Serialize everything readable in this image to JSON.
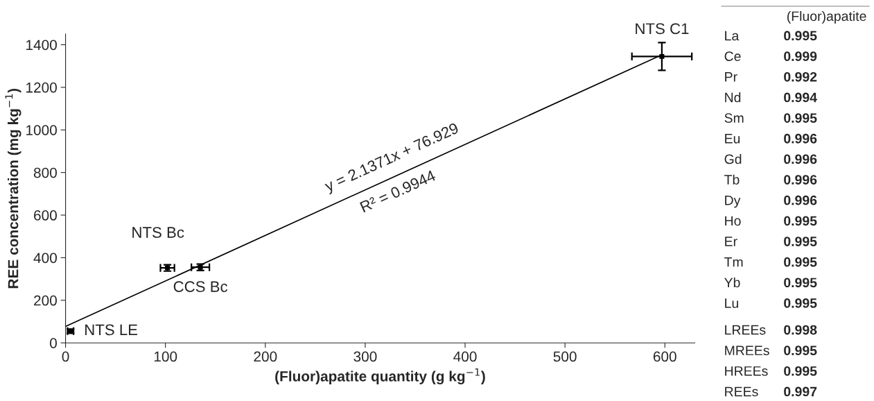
{
  "chart_data": [
    {
      "type": "scatter",
      "xlabel": "(Fluor)apatite quantity (g kg$^{−1}$)",
      "ylabel": "REE concentration (mg kg$^{−1}$)",
      "xlim": [
        0,
        630
      ],
      "xticks": [
        0,
        100,
        200,
        300,
        400,
        500,
        600
      ],
      "ylim": [
        0,
        1450
      ],
      "yticks": [
        0,
        200,
        400,
        600,
        800,
        1000,
        1200,
        1400
      ],
      "grid": false,
      "legend": false,
      "series": [
        {
          "type": "scatter",
          "color": "#000000",
          "marker": "square",
          "x": [
            5,
            102,
            135,
            597
          ],
          "values": [
            55,
            352,
            355,
            1345
          ],
          "errors": [
            10,
            15,
            15,
            65
          ],
          "xerrors": [
            3,
            7,
            9,
            30
          ]
        },
        {
          "type": "line",
          "color": "#000000",
          "line_style": "solid",
          "x": [
            0,
            597
          ],
          "values": [
            77,
            1353
          ]
        }
      ],
      "annotations": [
        {
          "text": "NTS LE",
          "x": 5,
          "y": 55
        },
        {
          "text": "NTS Bc",
          "x": 102,
          "y": 352
        },
        {
          "text": "CCS Bc",
          "x": 135,
          "y": 355
        },
        {
          "text": "NTS C1",
          "x": 597,
          "y": 1345
        },
        {
          "text": "y = 2.1371x + 76.929",
          "x": 330,
          "y": 782
        },
        {
          "text": "R² = 0.9944",
          "x": 330,
          "y": 782
        }
      ]
    },
    {
      "type": "other",
      "title": "(Fluor)apatite",
      "data_labels": true,
      "categories": [
        "La",
        "Ce",
        "Pr",
        "Nd",
        "Sm",
        "Eu",
        "Gd",
        "Tb",
        "Dy",
        "Ho",
        "Er",
        "Tm",
        "Yb",
        "Lu",
        "LREEs",
        "MREEs",
        "HREEs",
        "REEs"
      ],
      "values": [
        0.995,
        0.999,
        0.992,
        0.994,
        0.995,
        0.996,
        0.996,
        0.996,
        0.996,
        0.995,
        0.995,
        0.995,
        0.995,
        0.995,
        0.998,
        0.995,
        0.995,
        0.997
      ]
    }
  ]
}
